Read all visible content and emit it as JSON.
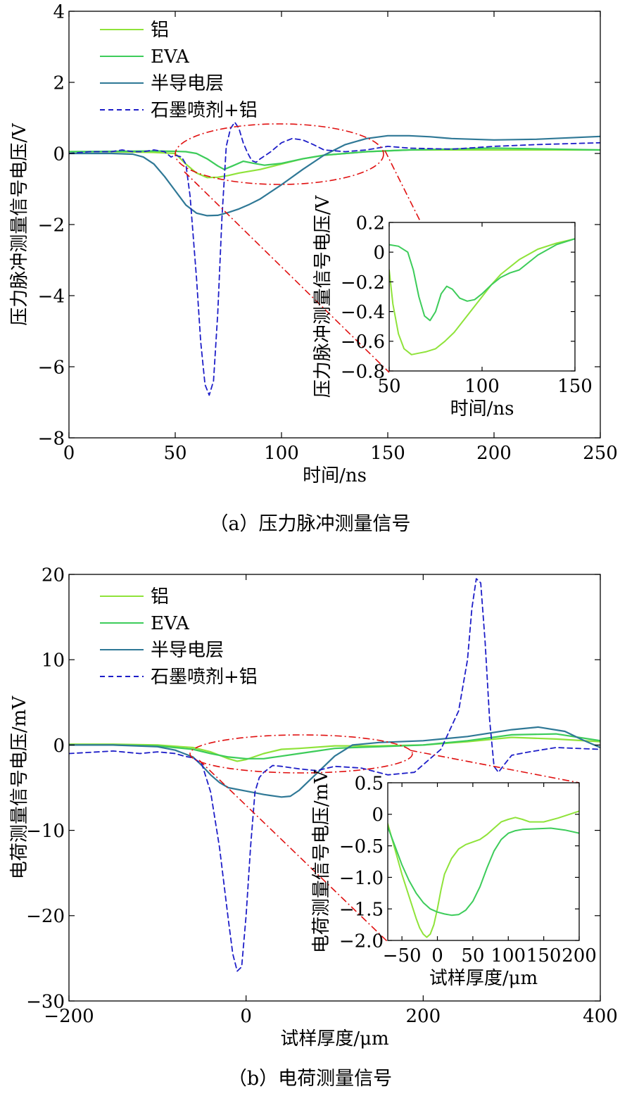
{
  "colors": {
    "al": "#8fe33a",
    "eva": "#3dcc5a",
    "semi": "#2f7896",
    "graphite": "#1e1ec8",
    "callout": "#e01010"
  },
  "chart_data": [
    {
      "id": "a",
      "type": "line",
      "caption": "（a）压力脉冲测量信号",
      "xlabel": "时间/ns",
      "ylabel": "压力脉冲测量信号电压/V",
      "xlim": [
        0,
        250
      ],
      "ylim": [
        -8,
        4
      ],
      "xticks": [
        "0",
        "50",
        "100",
        "150",
        "200",
        "250"
      ],
      "yticks": [
        "−8",
        "−6",
        "−4",
        "−2",
        "0",
        "2",
        "4"
      ],
      "grid": false,
      "legend": "top-left",
      "series": [
        {
          "name": "铝",
          "style": "solid",
          "color_key": "al",
          "x": [
            0,
            20,
            40,
            50,
            55,
            60,
            65,
            70,
            75,
            80,
            90,
            100,
            110,
            120,
            140,
            160,
            200,
            250
          ],
          "y": [
            0.05,
            0.05,
            0.03,
            0.0,
            -0.3,
            -0.55,
            -0.68,
            -0.67,
            -0.62,
            -0.55,
            -0.45,
            -0.3,
            -0.15,
            -0.05,
            0.05,
            0.1,
            0.1,
            0.1
          ]
        },
        {
          "name": "EVA",
          "style": "solid",
          "color_key": "eva",
          "x": [
            0,
            20,
            40,
            50,
            55,
            60,
            65,
            70,
            73,
            77,
            82,
            87,
            92,
            100,
            110,
            120,
            140,
            160,
            200,
            250
          ],
          "y": [
            0.05,
            0.06,
            0.07,
            0.06,
            0.05,
            0.0,
            -0.15,
            -0.35,
            -0.45,
            -0.35,
            -0.22,
            -0.28,
            -0.33,
            -0.28,
            -0.15,
            -0.05,
            0.05,
            0.1,
            0.15,
            0.1
          ]
        },
        {
          "name": "半导电层",
          "style": "solid",
          "color_key": "semi",
          "x": [
            0,
            20,
            30,
            35,
            40,
            45,
            50,
            55,
            60,
            65,
            70,
            75,
            80,
            85,
            90,
            100,
            110,
            120,
            130,
            140,
            150,
            160,
            170,
            180,
            200,
            220,
            250
          ],
          "y": [
            0.0,
            0.0,
            -0.02,
            -0.1,
            -0.3,
            -0.65,
            -1.05,
            -1.45,
            -1.68,
            -1.75,
            -1.74,
            -1.66,
            -1.56,
            -1.43,
            -1.28,
            -0.88,
            -0.45,
            -0.05,
            0.25,
            0.42,
            0.5,
            0.5,
            0.47,
            0.42,
            0.38,
            0.4,
            0.48
          ]
        },
        {
          "name": "石墨喷剂+铝",
          "style": "dashed",
          "color_key": "graphite",
          "x": [
            0,
            10,
            20,
            25,
            30,
            35,
            40,
            45,
            48,
            50,
            53,
            55,
            57,
            60,
            62,
            64,
            66,
            68,
            70,
            72,
            74,
            76,
            78,
            80,
            82,
            84,
            86,
            88,
            90,
            95,
            100,
            105,
            110,
            115,
            120,
            130,
            140,
            150,
            160,
            180,
            200,
            220,
            250
          ],
          "y": [
            0.0,
            0.05,
            0.05,
            0.1,
            0.05,
            0.05,
            0.1,
            0.05,
            -0.1,
            -0.05,
            -0.1,
            -0.3,
            -1.2,
            -3.5,
            -5.3,
            -6.5,
            -6.8,
            -6.4,
            -4.5,
            -1.8,
            0.2,
            0.7,
            0.88,
            0.7,
            0.3,
            0.02,
            -0.2,
            -0.25,
            -0.15,
            0.05,
            0.3,
            0.42,
            0.38,
            0.25,
            0.1,
            0.05,
            0.1,
            0.2,
            0.15,
            0.12,
            0.2,
            0.25,
            0.3
          ]
        }
      ],
      "inset": {
        "xlim": [
          50,
          150
        ],
        "ylim": [
          -0.8,
          0.2
        ],
        "xticks": [
          "50",
          "100",
          "150"
        ],
        "yticks": [
          "−0.8",
          "−0.6",
          "−0.4",
          "−0.2",
          "0",
          "0.2"
        ],
        "xlabel": "时间/ns",
        "ylabel": "压力脉冲测量信号电压/V",
        "series": [
          {
            "color_key": "al",
            "x": [
              50,
              52,
              55,
              58,
              62,
              66,
              70,
              75,
              80,
              85,
              90,
              95,
              100,
              105,
              110,
              120,
              130,
              140,
              150
            ],
            "y": [
              -0.12,
              -0.35,
              -0.55,
              -0.65,
              -0.69,
              -0.68,
              -0.67,
              -0.65,
              -0.6,
              -0.54,
              -0.46,
              -0.38,
              -0.3,
              -0.22,
              -0.15,
              -0.05,
              0.02,
              0.06,
              0.09
            ]
          },
          {
            "color_key": "eva",
            "x": [
              50,
              55,
              60,
              63,
              66,
              69,
              72,
              75,
              78,
              81,
              84,
              88,
              92,
              96,
              100,
              105,
              110,
              115,
              120,
              130,
              140,
              150
            ],
            "y": [
              0.05,
              0.04,
              0.0,
              -0.12,
              -0.3,
              -0.43,
              -0.46,
              -0.4,
              -0.28,
              -0.23,
              -0.25,
              -0.31,
              -0.33,
              -0.32,
              -0.28,
              -0.22,
              -0.17,
              -0.14,
              -0.12,
              -0.02,
              0.05,
              0.09
            ]
          }
        ]
      }
    },
    {
      "id": "b",
      "type": "line",
      "caption": "（b）电荷测量信号",
      "xlabel": "试样厚度/μm",
      "ylabel": "电荷测量信号电压/mV",
      "xlim": [
        -200,
        400
      ],
      "ylim": [
        -30,
        20
      ],
      "xticks": [
        "−200",
        "0",
        "200",
        "400"
      ],
      "yticks": [
        "−30",
        "−20",
        "−10",
        "0",
        "10",
        "20"
      ],
      "grid": false,
      "legend": "top-left",
      "series": [
        {
          "name": "铝",
          "style": "solid",
          "color_key": "al",
          "x": [
            -200,
            -150,
            -100,
            -60,
            -40,
            -20,
            -10,
            0,
            20,
            40,
            60,
            100,
            150,
            200,
            250,
            300,
            350,
            400
          ],
          "y": [
            0.1,
            0.1,
            0.0,
            -0.3,
            -0.8,
            -1.6,
            -1.9,
            -1.7,
            -1.0,
            -0.5,
            -0.4,
            -0.1,
            -0.1,
            0.0,
            0.4,
            0.9,
            0.7,
            0.4
          ]
        },
        {
          "name": "EVA",
          "style": "solid",
          "color_key": "eva",
          "x": [
            -200,
            -150,
            -100,
            -60,
            -40,
            -20,
            0,
            20,
            40,
            60,
            80,
            100,
            120,
            150,
            200,
            250,
            300,
            350,
            400
          ],
          "y": [
            0.0,
            0.0,
            -0.1,
            -0.5,
            -1.0,
            -1.4,
            -1.6,
            -1.6,
            -1.3,
            -1.0,
            -0.7,
            -0.4,
            -0.3,
            -0.2,
            0.0,
            0.5,
            1.2,
            1.3,
            0.5
          ]
        },
        {
          "name": "半导电层",
          "style": "solid",
          "color_key": "semi",
          "x": [
            -200,
            -150,
            -100,
            -80,
            -60,
            -50,
            -40,
            -30,
            -20,
            0,
            20,
            40,
            50,
            60,
            80,
            100,
            120,
            150,
            200,
            250,
            300,
            330,
            360,
            380,
            400
          ],
          "y": [
            0.0,
            0.0,
            -0.2,
            -0.6,
            -1.4,
            -2.4,
            -3.5,
            -4.4,
            -5.0,
            -5.4,
            -5.8,
            -6.1,
            -6.0,
            -5.3,
            -3.3,
            -1.3,
            0.0,
            0.3,
            0.5,
            1.0,
            1.8,
            2.1,
            1.6,
            0.6,
            -0.3
          ]
        },
        {
          "name": "石墨喷剂+铝",
          "style": "dashed",
          "color_key": "graphite",
          "x": [
            -200,
            -150,
            -120,
            -100,
            -80,
            -70,
            -60,
            -50,
            -40,
            -30,
            -20,
            -15,
            -10,
            -5,
            0,
            5,
            10,
            15,
            20,
            30,
            40,
            60,
            80,
            100,
            130,
            160,
            190,
            220,
            240,
            250,
            255,
            260,
            265,
            270,
            275,
            280,
            285,
            290,
            300,
            320,
            350,
            400
          ],
          "y": [
            -1.0,
            -0.7,
            -1.0,
            -0.8,
            -1.0,
            -1.3,
            -1.5,
            -2.2,
            -5.5,
            -12.0,
            -20.5,
            -24.5,
            -26.5,
            -26.0,
            -20.0,
            -12.0,
            -5.5,
            -3.8,
            -3.2,
            -2.4,
            -2.5,
            -2.8,
            -3.0,
            -2.5,
            -2.7,
            -3.5,
            -3.2,
            -0.5,
            4.0,
            10.0,
            16.0,
            19.5,
            19.0,
            12.0,
            3.0,
            -2.5,
            -3.2,
            -2.5,
            -1.2,
            -0.8,
            -0.3,
            -0.5
          ]
        }
      ],
      "inset": {
        "xlim": [
          -70,
          200
        ],
        "ylim": [
          -2.0,
          0.5
        ],
        "xticks": [
          "−50",
          "0",
          "50",
          "100",
          "150",
          "200"
        ],
        "yticks": [
          "−2.0",
          "−1.5",
          "−1.0",
          "−0.5",
          "0",
          "0.5"
        ],
        "xlabel": "试样厚度/μm",
        "ylabel": "电荷测量信号电压/mV",
        "series": [
          {
            "color_key": "al",
            "x": [
              -70,
              -60,
              -50,
              -40,
              -30,
              -25,
              -20,
              -15,
              -10,
              -5,
              0,
              5,
              10,
              20,
              30,
              40,
              50,
              60,
              70,
              80,
              90,
              100,
              110,
              120,
              130,
              150,
              170,
              200
            ],
            "y": [
              -0.15,
              -0.55,
              -0.95,
              -1.3,
              -1.65,
              -1.8,
              -1.9,
              -1.95,
              -1.9,
              -1.75,
              -1.5,
              -1.2,
              -0.95,
              -0.7,
              -0.55,
              -0.48,
              -0.44,
              -0.4,
              -0.32,
              -0.22,
              -0.12,
              -0.08,
              -0.05,
              -0.08,
              -0.12,
              -0.12,
              -0.06,
              0.05
            ]
          },
          {
            "color_key": "eva",
            "x": [
              -70,
              -60,
              -50,
              -40,
              -30,
              -20,
              -10,
              0,
              10,
              20,
              30,
              40,
              50,
              60,
              70,
              80,
              90,
              100,
              110,
              120,
              140,
              160,
              180,
              200
            ],
            "y": [
              -0.2,
              -0.5,
              -0.8,
              -1.05,
              -1.25,
              -1.4,
              -1.5,
              -1.55,
              -1.58,
              -1.6,
              -1.59,
              -1.52,
              -1.38,
              -1.15,
              -0.85,
              -0.58,
              -0.4,
              -0.3,
              -0.26,
              -0.24,
              -0.23,
              -0.22,
              -0.25,
              -0.3
            ]
          }
        ]
      }
    }
  ]
}
